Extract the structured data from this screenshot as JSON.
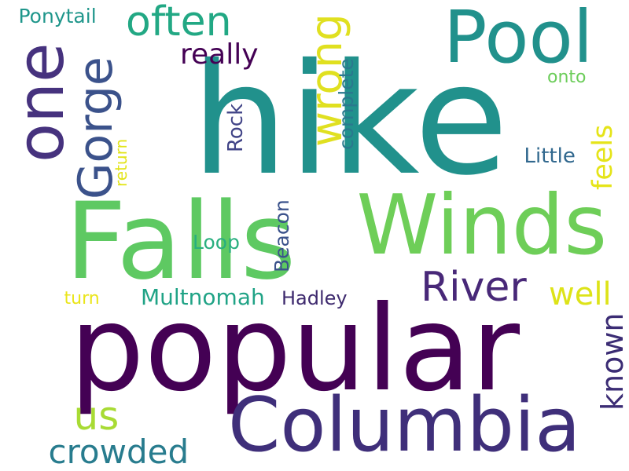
{
  "words": [
    {
      "id": "hike",
      "text": "hike",
      "color": "#21918c"
    },
    {
      "id": "popular",
      "text": "popular",
      "color": "#440154"
    },
    {
      "id": "falls",
      "text": "Falls",
      "color": "#5ec962"
    },
    {
      "id": "winds",
      "text": "Winds",
      "color": "#6ece58"
    },
    {
      "id": "columbia",
      "text": "Columbia",
      "color": "#3f2f7a"
    },
    {
      "id": "pool",
      "text": "Pool",
      "color": "#21918c"
    },
    {
      "id": "one",
      "text": "one",
      "color": "#46327e"
    },
    {
      "id": "often",
      "text": "often",
      "color": "#22a884"
    },
    {
      "id": "river",
      "text": "River",
      "color": "#482878"
    },
    {
      "id": "gorge",
      "text": "Gorge",
      "color": "#3b528b"
    },
    {
      "id": "wrong",
      "text": "wrong",
      "color": "#e0e020"
    },
    {
      "id": "really",
      "text": "really",
      "color": "#440154"
    },
    {
      "id": "crowded",
      "text": "crowded",
      "color": "#287c8e"
    },
    {
      "id": "us",
      "text": "us",
      "color": "#a8db34"
    },
    {
      "id": "known",
      "text": "known",
      "color": "#3b2c74"
    },
    {
      "id": "multnomah",
      "text": "Multnomah",
      "color": "#20a386"
    },
    {
      "id": "well",
      "text": "well",
      "color": "#dde318"
    },
    {
      "id": "feels",
      "text": "feels",
      "color": "#e5e419"
    },
    {
      "id": "hadley",
      "text": "Hadley",
      "color": "#3e2a6e"
    },
    {
      "id": "beacon",
      "text": "Beacon",
      "color": "#3b528b"
    },
    {
      "id": "complete",
      "text": "complete",
      "color": "#2a788e"
    },
    {
      "id": "little",
      "text": "Little",
      "color": "#31688e"
    },
    {
      "id": "rock",
      "text": "Rock",
      "color": "#414487"
    },
    {
      "id": "ponytail",
      "text": "Ponytail",
      "color": "#1f968b"
    },
    {
      "id": "return",
      "text": "return",
      "color": "#e2e418"
    },
    {
      "id": "loop",
      "text": "Loop",
      "color": "#29af7f"
    },
    {
      "id": "onto",
      "text": "onto",
      "color": "#6ccd5a"
    },
    {
      "id": "turn",
      "text": "turn",
      "color": "#eae51a"
    }
  ]
}
